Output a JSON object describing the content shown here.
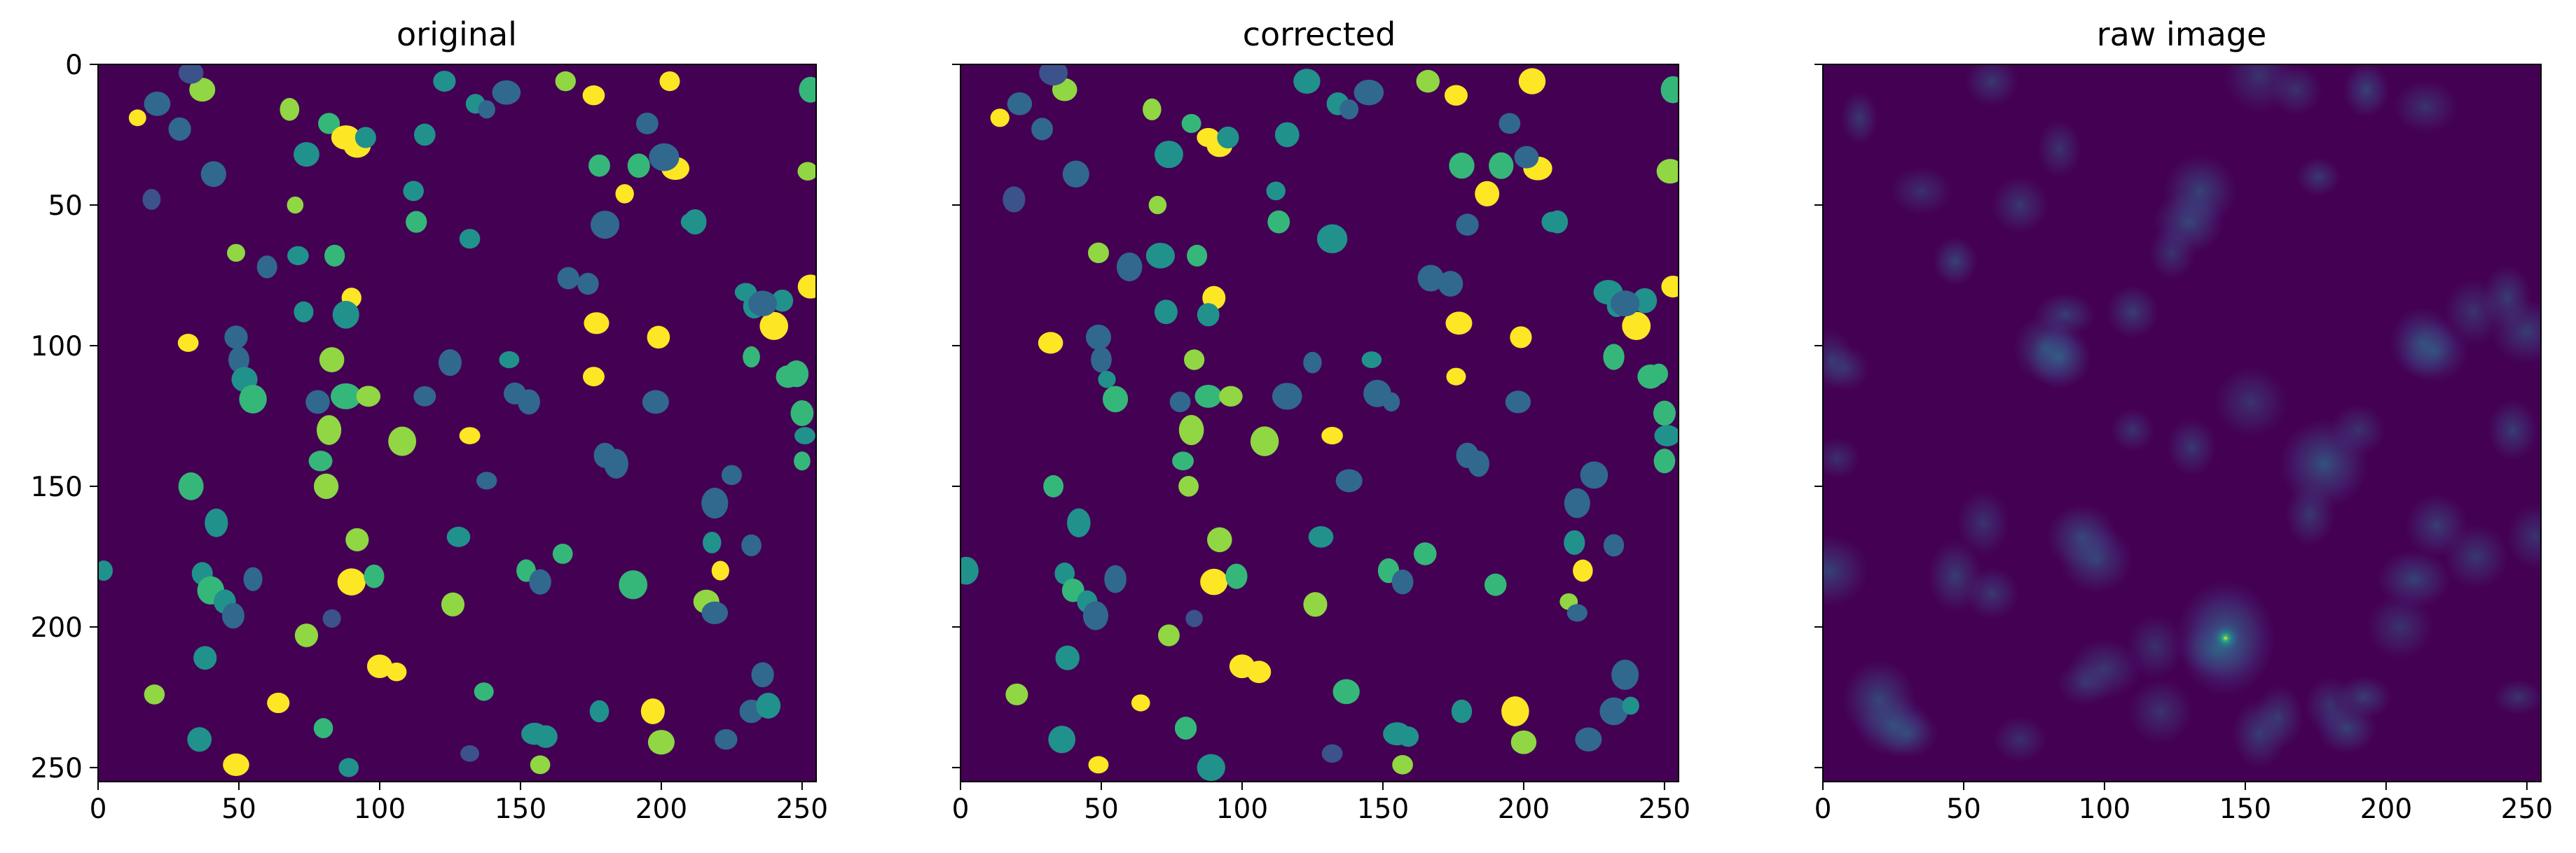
{
  "figure": {
    "colormap": "viridis",
    "background_color": "#440154",
    "spot_palette": [
      "#3b528b",
      "#31688e",
      "#21918c",
      "#35b779",
      "#90d743",
      "#fde725"
    ],
    "shared_y_axis": true
  },
  "chart_data": [
    {
      "type": "heatmap",
      "title": "original",
      "xlim": [
        0,
        255
      ],
      "ylim": [
        255,
        0
      ],
      "xticks": [
        0,
        50,
        100,
        150,
        200,
        250
      ],
      "yticks": [
        0,
        50,
        100,
        150,
        200,
        250
      ],
      "yaxis_labels_visible": true,
      "content": "label image of segmented spots"
    },
    {
      "type": "heatmap",
      "title": "corrected",
      "xlim": [
        0,
        255
      ],
      "ylim": [
        255,
        0
      ],
      "xticks": [
        0,
        50,
        100,
        150,
        200,
        250
      ],
      "yticks": [
        0,
        50,
        100,
        150,
        200,
        250
      ],
      "yaxis_labels_visible": false,
      "content": "corrected label image of segmented spots"
    },
    {
      "type": "heatmap",
      "title": "raw image",
      "xlim": [
        0,
        255
      ],
      "ylim": [
        255,
        0
      ],
      "xticks": [
        0,
        50,
        100,
        150,
        200,
        250
      ],
      "yticks": [
        0,
        50,
        100,
        150,
        200,
        250
      ],
      "yaxis_labels_visible": false,
      "content": "raw intensity image",
      "brightest_point": [
        143,
        204
      ]
    }
  ],
  "spots": [
    [
      14,
      19,
      5
    ],
    [
      21,
      14,
      1
    ],
    [
      19,
      48,
      0
    ],
    [
      37,
      9,
      4
    ],
    [
      29,
      23,
      1
    ],
    [
      33,
      3,
      0
    ],
    [
      41,
      39,
      1
    ],
    [
      49,
      67,
      4
    ],
    [
      49,
      97,
      1
    ],
    [
      50,
      105,
      1
    ],
    [
      52,
      112,
      2
    ],
    [
      55,
      119,
      3
    ],
    [
      32,
      99,
      5
    ],
    [
      33,
      150,
      3
    ],
    [
      42,
      163,
      2
    ],
    [
      37,
      181,
      2
    ],
    [
      40,
      187,
      3
    ],
    [
      45,
      191,
      2
    ],
    [
      48,
      196,
      1
    ],
    [
      55,
      183,
      1
    ],
    [
      38,
      211,
      2
    ],
    [
      36,
      240,
      2
    ],
    [
      49,
      249,
      5
    ],
    [
      20,
      224,
      4
    ],
    [
      2,
      180,
      2
    ],
    [
      68,
      16,
      4
    ],
    [
      74,
      32,
      2
    ],
    [
      70,
      50,
      4
    ],
    [
      71,
      68,
      2
    ],
    [
      82,
      21,
      3
    ],
    [
      88,
      26,
      5
    ],
    [
      92,
      29,
      5
    ],
    [
      95,
      26,
      2
    ],
    [
      84,
      68,
      3
    ],
    [
      90,
      83,
      5
    ],
    [
      83,
      105,
      4
    ],
    [
      88,
      118,
      3
    ],
    [
      82,
      130,
      4
    ],
    [
      79,
      141,
      3
    ],
    [
      81,
      150,
      4
    ],
    [
      92,
      169,
      4
    ],
    [
      90,
      184,
      5
    ],
    [
      98,
      182,
      3
    ],
    [
      83,
      197,
      0
    ],
    [
      74,
      203,
      4
    ],
    [
      100,
      214,
      5
    ],
    [
      106,
      216,
      5
    ],
    [
      64,
      227,
      5
    ],
    [
      80,
      236,
      3
    ],
    [
      89,
      250,
      2
    ],
    [
      60,
      72,
      1
    ],
    [
      73,
      88,
      2
    ],
    [
      88,
      89,
      2
    ],
    [
      96,
      118,
      4
    ],
    [
      78,
      120,
      1
    ],
    [
      108,
      134,
      4
    ],
    [
      112,
      45,
      2
    ],
    [
      113,
      56,
      3
    ],
    [
      116,
      25,
      2
    ],
    [
      123,
      6,
      2
    ],
    [
      134,
      14,
      2
    ],
    [
      138,
      16,
      1
    ],
    [
      145,
      10,
      1
    ],
    [
      132,
      62,
      2
    ],
    [
      132,
      132,
      5
    ],
    [
      138,
      148,
      1
    ],
    [
      125,
      106,
      1
    ],
    [
      116,
      118,
      1
    ],
    [
      128,
      168,
      2
    ],
    [
      126,
      192,
      4
    ],
    [
      152,
      180,
      3
    ],
    [
      157,
      184,
      1
    ],
    [
      165,
      174,
      3
    ],
    [
      146,
      105,
      2
    ],
    [
      148,
      117,
      1
    ],
    [
      159,
      239,
      2
    ],
    [
      157,
      249,
      4
    ],
    [
      155,
      238,
      2
    ],
    [
      137,
      223,
      3
    ],
    [
      132,
      245,
      0
    ],
    [
      153,
      120,
      1
    ],
    [
      176,
      11,
      5
    ],
    [
      166,
      6,
      4
    ],
    [
      178,
      36,
      3
    ],
    [
      187,
      46,
      5
    ],
    [
      192,
      36,
      3
    ],
    [
      177,
      92,
      5
    ],
    [
      176,
      111,
      5
    ],
    [
      180,
      139,
      1
    ],
    [
      184,
      142,
      1
    ],
    [
      190,
      185,
      3
    ],
    [
      178,
      230,
      2
    ],
    [
      197,
      230,
      5
    ],
    [
      200,
      241,
      4
    ],
    [
      199,
      97,
      5
    ],
    [
      205,
      37,
      5
    ],
    [
      201,
      33,
      1
    ],
    [
      203,
      6,
      5
    ],
    [
      210,
      56,
      2
    ],
    [
      212,
      56,
      2
    ],
    [
      218,
      170,
      2
    ],
    [
      216,
      191,
      4
    ],
    [
      221,
      180,
      5
    ],
    [
      230,
      81,
      2
    ],
    [
      233,
      86,
      2
    ],
    [
      240,
      93,
      5
    ],
    [
      243,
      84,
      2
    ],
    [
      245,
      111,
      3
    ],
    [
      248,
      110,
      3
    ],
    [
      253,
      79,
      5
    ],
    [
      252,
      38,
      4
    ],
    [
      250,
      124,
      3
    ],
    [
      251,
      132,
      2
    ],
    [
      250,
      141,
      3
    ],
    [
      253,
      9,
      3
    ],
    [
      236,
      217,
      1
    ],
    [
      232,
      230,
      1
    ],
    [
      238,
      228,
      2
    ],
    [
      223,
      240,
      1
    ],
    [
      219,
      156,
      1
    ],
    [
      232,
      171,
      1
    ],
    [
      219,
      195,
      1
    ],
    [
      236,
      85,
      1
    ],
    [
      232,
      104,
      3
    ],
    [
      225,
      146,
      1
    ],
    [
      198,
      120,
      1
    ],
    [
      167,
      76,
      1
    ],
    [
      174,
      78,
      1
    ],
    [
      180,
      57,
      1
    ],
    [
      195,
      21,
      1
    ]
  ],
  "raw_blobs": [
    [
      13,
      19,
      0.2
    ],
    [
      47,
      70,
      0.3
    ],
    [
      84,
      104,
      0.55
    ],
    [
      79,
      101,
      0.3
    ],
    [
      86,
      89,
      0.25
    ],
    [
      110,
      88,
      0.25
    ],
    [
      130,
      56,
      0.35
    ],
    [
      134,
      45,
      0.3
    ],
    [
      92,
      168,
      0.35
    ],
    [
      97,
      176,
      0.3
    ],
    [
      143,
      204,
      0.9
    ],
    [
      140,
      208,
      0.3
    ],
    [
      178,
      142,
      0.45
    ],
    [
      173,
      160,
      0.2
    ],
    [
      213,
      99,
      0.35
    ],
    [
      217,
      102,
      0.3
    ],
    [
      210,
      183,
      0.3
    ],
    [
      186,
      236,
      0.3
    ],
    [
      192,
      225,
      0.25
    ],
    [
      20,
      226,
      0.35
    ],
    [
      25,
      235,
      0.35
    ],
    [
      30,
      238,
      0.25
    ],
    [
      155,
      238,
      0.25
    ],
    [
      162,
      232,
      0.2
    ],
    [
      218,
      164,
      0.25
    ],
    [
      2,
      180,
      0.3
    ],
    [
      60,
      6,
      0.2
    ],
    [
      193,
      9,
      0.3
    ],
    [
      214,
      15,
      0.15
    ],
    [
      155,
      4,
      0.15
    ],
    [
      245,
      130,
      0.25
    ],
    [
      250,
      95,
      0.25
    ],
    [
      243,
      83,
      0.25
    ],
    [
      70,
      50,
      0.2
    ],
    [
      47,
      182,
      0.25
    ],
    [
      60,
      188,
      0.2
    ],
    [
      120,
      230,
      0.15
    ],
    [
      100,
      215,
      0.2
    ],
    [
      232,
      175,
      0.2
    ],
    [
      124,
      67,
      0.15
    ],
    [
      176,
      40,
      0.2
    ],
    [
      231,
      88,
      0.15
    ],
    [
      84,
      30,
      0.15
    ],
    [
      110,
      130,
      0.15
    ],
    [
      131,
      136,
      0.2
    ],
    [
      152,
      120,
      0.15
    ],
    [
      57,
      163,
      0.15
    ],
    [
      168,
      9,
      0.15
    ],
    [
      190,
      130,
      0.15
    ],
    [
      205,
      200,
      0.15
    ],
    [
      35,
      45,
      0.12
    ],
    [
      8,
      108,
      0.15
    ],
    [
      253,
      168,
      0.15
    ],
    [
      3,
      105,
      0.15
    ],
    [
      5,
      140,
      0.12
    ],
    [
      70,
      240,
      0.12
    ],
    [
      93,
      220,
      0.12
    ],
    [
      118,
      207,
      0.12
    ],
    [
      180,
      228,
      0.15
    ],
    [
      247,
      225,
      0.15
    ]
  ]
}
